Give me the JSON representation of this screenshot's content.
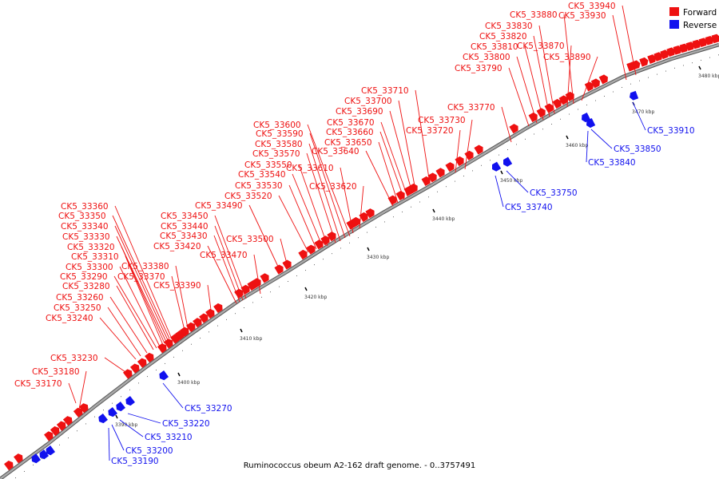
{
  "caption": "Ruminococcus obeum A2-162 draft genome. - 0..3757491",
  "legend": [
    {
      "label": "Forward",
      "color": "#ee1111"
    },
    {
      "label": "Reverse",
      "color": "#1111ee"
    }
  ],
  "colors": {
    "forward": "#ee1111",
    "reverse": "#1111ee",
    "backbone": "#888888"
  },
  "tick_labels": [
    "3390 kbp",
    "3400 kbp",
    "3410 kbp",
    "3420 kbp",
    "3430 kbp",
    "3440 kbp",
    "3450 kbp",
    "3460 kbp",
    "3470 kbp",
    "3480 kbp"
  ],
  "forward_labels": [
    "CK5_33170",
    "CK5_33180",
    "CK5_33230",
    "CK5_33240",
    "CK5_33250",
    "CK5_33260",
    "CK5_33280",
    "CK5_33290",
    "CK5_33300",
    "CK5_33310",
    "CK5_33320",
    "CK5_33330",
    "CK5_33340",
    "CK5_33350",
    "CK5_33360",
    "CK5_33370",
    "CK5_33380",
    "CK5_33390",
    "CK5_33420",
    "CK5_33430",
    "CK5_33440",
    "CK5_33450",
    "CK5_33470",
    "CK5_33490",
    "CK5_33500",
    "CK5_33520",
    "CK5_33530",
    "CK5_33540",
    "CK5_33550",
    "CK5_33570",
    "CK5_33580",
    "CK5_33590",
    "CK5_33600",
    "CK5_33610",
    "CK5_33620",
    "CK5_33640",
    "CK5_33650",
    "CK5_33660",
    "CK5_33670",
    "CK5_33690",
    "CK5_33700",
    "CK5_33710",
    "CK5_33720",
    "CK5_33730",
    "CK5_33770",
    "CK5_33790",
    "CK5_33800",
    "CK5_33810",
    "CK5_33820",
    "CK5_33830",
    "CK5_33870",
    "CK5_33880",
    "CK5_33890",
    "CK5_33930",
    "CK5_33940"
  ],
  "reverse_labels": [
    "CK5_33190",
    "CK5_33200",
    "CK5_33210",
    "CK5_33220",
    "CK5_33270",
    "CK5_33740",
    "CK5_33750",
    "CK5_33840",
    "CK5_33850",
    "CK5_33910"
  ]
}
